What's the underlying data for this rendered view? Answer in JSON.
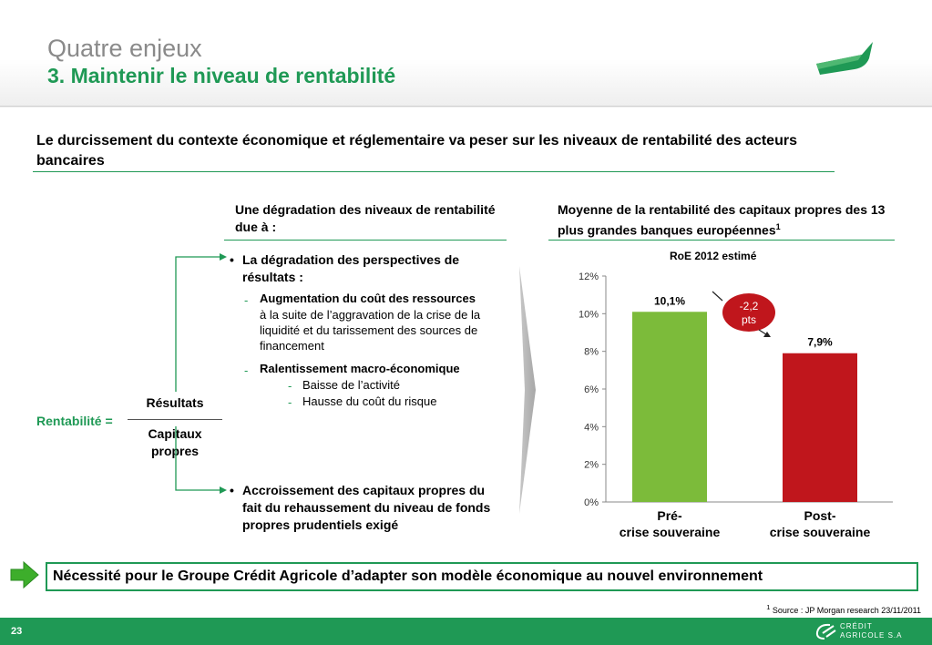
{
  "header": {
    "title": "Quatre enjeux",
    "subtitle": "3. Maintenir le niveau de rentabilité"
  },
  "intro": "Le durcissement du contexte économique et réglementaire va peser sur les niveaux de rentabilité des acteurs bancaires",
  "left_column": {
    "heading": "Une dégradation des niveaux de rentabilité due à :",
    "formula": {
      "label": "Rentabilité =",
      "numerator": "Résultats",
      "denominator_line1": "Capitaux",
      "denominator_line2": "propres"
    },
    "bullet1": {
      "text": "La dégradation des perspectives de résultats :",
      "sub1_title": "Augmentation du coût des ressources",
      "sub1_text": "à la suite de l’aggravation de la crise de la liquidité et du tarissement des sources de financement",
      "sub2_title": "Ralentissement macro-économique",
      "sub2_items": [
        "Baisse de l’activité",
        "Hausse du coût du risque"
      ]
    },
    "bullet2": {
      "text": "Accroissement des capitaux propres du fait du rehaussement du niveau de fonds propres prudentiels exigé"
    },
    "bullet_char": "•",
    "dash_char": "-"
  },
  "right_column": {
    "heading": "Moyenne de la rentabilité des capitaux propres des 13 plus grandes banques européennes",
    "heading_sup": "1"
  },
  "chart_data": {
    "type": "bar",
    "title": "RoE 2012 estimé",
    "categories": [
      "Pré- crise souveraine",
      "Post- crise souveraine"
    ],
    "category_lines": [
      [
        "Pré-",
        "crise souveraine"
      ],
      [
        "Post-",
        "crise souveraine"
      ]
    ],
    "values": [
      10.1,
      7.9
    ],
    "data_labels": [
      "10,1%",
      "7,9%"
    ],
    "colors": [
      "#7cbb3a",
      "#c0161c"
    ],
    "ylim": [
      0,
      12
    ],
    "yticks": [
      "0%",
      "2%",
      "4%",
      "6%",
      "8%",
      "10%",
      "12%"
    ],
    "grid": false,
    "annotation": {
      "line1": "-2,2",
      "line2": "pts",
      "color": "#c0161c"
    }
  },
  "conclusion": "Nécessité pour le Groupe Crédit Agricole d’adapter son modèle économique au nouvel environnement",
  "footnote": {
    "sup": "1",
    "text": " Source : JP Morgan research  23/11/2011"
  },
  "footer": {
    "page_number": "23",
    "brand_line1": "CRÉDIT",
    "brand_line2": "AGRICOLE S.A"
  },
  "colors": {
    "brand_green": "#1f9955",
    "bar_green": "#7cbb3a",
    "bar_red": "#c0161c"
  },
  "icons": {
    "arrow": "green-arrow-icon",
    "logo": "credit-agricole-logo-icon",
    "header_mark": "green-swoosh-icon"
  }
}
